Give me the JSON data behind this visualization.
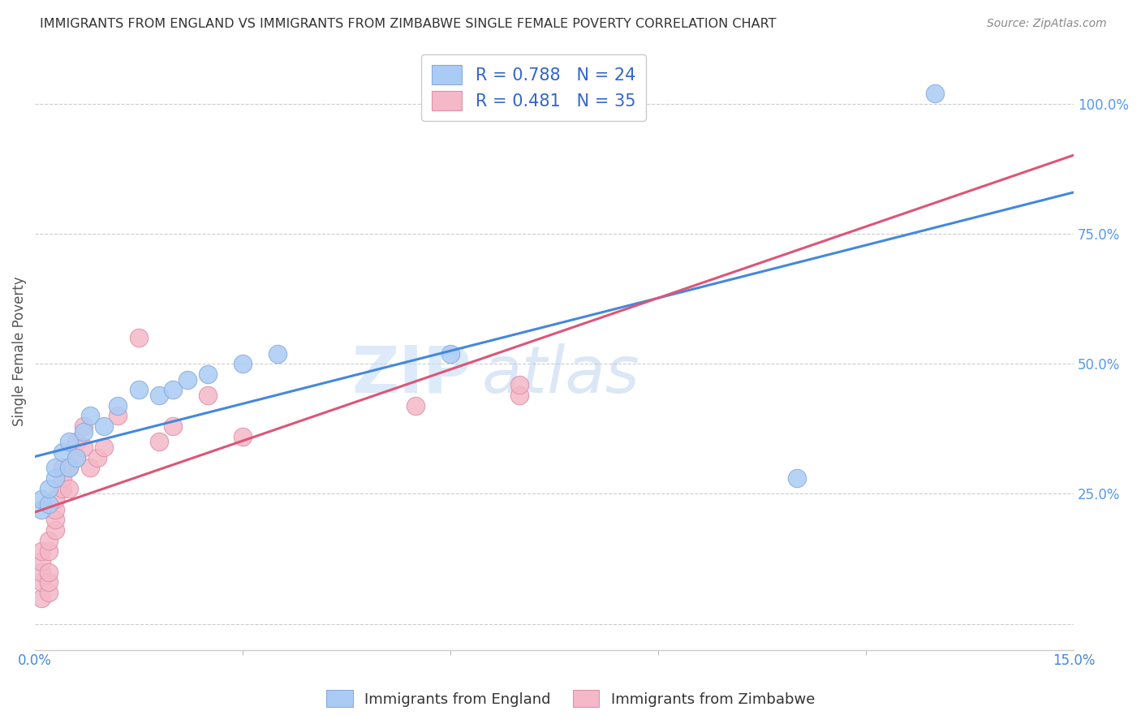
{
  "title": "IMMIGRANTS FROM ENGLAND VS IMMIGRANTS FROM ZIMBABWE SINGLE FEMALE POVERTY CORRELATION CHART",
  "source": "Source: ZipAtlas.com",
  "ylabel": "Single Female Poverty",
  "watermark_part1": "ZIP",
  "watermark_part2": "atlas",
  "england_R": 0.788,
  "england_N": 24,
  "zimbabwe_R": 0.481,
  "zimbabwe_N": 35,
  "england_color": "#aaccf4",
  "zimbabwe_color": "#f4b8c8",
  "england_edge_color": "#88aadd",
  "zimbabwe_edge_color": "#e090a8",
  "england_line_color": "#4488dd",
  "zimbabwe_line_color": "#dd5577",
  "background_color": "#ffffff",
  "grid_color": "#cccccc",
  "title_color": "#333333",
  "source_color": "#888888",
  "right_tick_color": "#5599ee",
  "xlim": [
    0.0,
    0.15
  ],
  "ylim": [
    -0.05,
    1.1
  ],
  "x_ticks": [
    0.0,
    0.15
  ],
  "x_tick_labels": [
    "0.0%",
    "15.0%"
  ],
  "y_ticks": [
    0.0,
    0.25,
    0.5,
    0.75,
    1.0
  ],
  "y_tick_labels_right": [
    "",
    "25.0%",
    "50.0%",
    "75.0%",
    "100.0%"
  ],
  "legend_england_label": "R = 0.788   N = 24",
  "legend_zimbabwe_label": "R = 0.481   N = 35",
  "bottom_legend_england": "Immigrants from England",
  "bottom_legend_zimbabwe": "Immigrants from Zimbabwe",
  "england_x": [
    0.001,
    0.001,
    0.002,
    0.002,
    0.003,
    0.003,
    0.004,
    0.005,
    0.005,
    0.006,
    0.007,
    0.008,
    0.01,
    0.012,
    0.015,
    0.018,
    0.02,
    0.022,
    0.025,
    0.03,
    0.035,
    0.06,
    0.11,
    0.13
  ],
  "england_y": [
    0.22,
    0.24,
    0.23,
    0.26,
    0.28,
    0.3,
    0.33,
    0.3,
    0.35,
    0.32,
    0.37,
    0.4,
    0.38,
    0.42,
    0.45,
    0.44,
    0.45,
    0.47,
    0.48,
    0.5,
    0.52,
    0.52,
    0.28,
    1.02
  ],
  "zimbabwe_x": [
    0.001,
    0.001,
    0.001,
    0.001,
    0.001,
    0.002,
    0.002,
    0.002,
    0.002,
    0.002,
    0.003,
    0.003,
    0.003,
    0.003,
    0.004,
    0.004,
    0.004,
    0.005,
    0.005,
    0.006,
    0.006,
    0.007,
    0.007,
    0.008,
    0.009,
    0.01,
    0.012,
    0.015,
    0.018,
    0.02,
    0.025,
    0.03,
    0.055,
    0.07,
    0.07
  ],
  "zimbabwe_y": [
    0.05,
    0.08,
    0.1,
    0.12,
    0.14,
    0.06,
    0.08,
    0.1,
    0.14,
    0.16,
    0.18,
    0.2,
    0.22,
    0.24,
    0.26,
    0.28,
    0.3,
    0.26,
    0.3,
    0.32,
    0.35,
    0.34,
    0.38,
    0.3,
    0.32,
    0.34,
    0.4,
    0.55,
    0.35,
    0.38,
    0.44,
    0.36,
    0.42,
    0.44,
    0.46
  ]
}
